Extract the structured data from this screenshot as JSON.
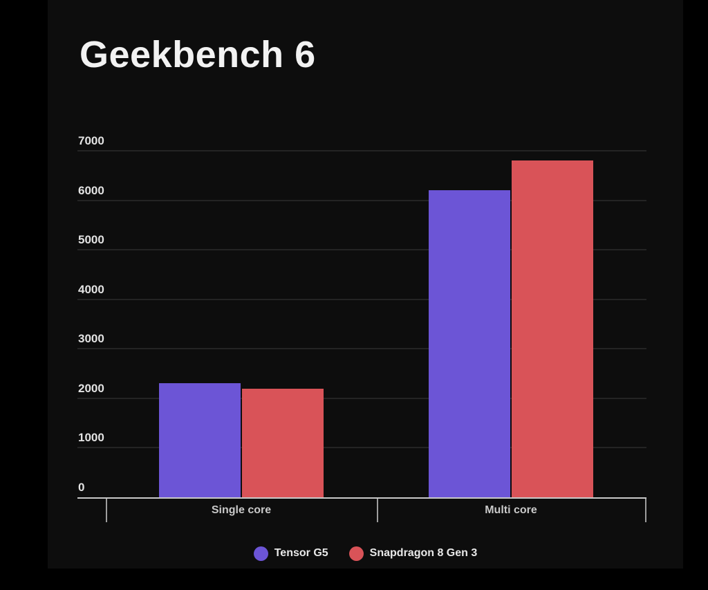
{
  "page": {
    "background": "#000000",
    "card_background": "#0d0d0d"
  },
  "chart_data": {
    "type": "bar",
    "title": "Geekbench 6",
    "categories": [
      "Single core",
      "Multi core"
    ],
    "series": [
      {
        "name": "Tensor G5",
        "color": "#6C55D6",
        "values": [
          2300,
          6200
        ]
      },
      {
        "name": "Snapdragon 8 Gen 3",
        "color": "#D95358",
        "values": [
          2200,
          6800
        ]
      }
    ],
    "xlabel": "",
    "ylabel": "",
    "ylim": [
      0,
      7000
    ],
    "yticks": [
      0,
      1000,
      2000,
      3000,
      4000,
      5000,
      6000,
      7000
    ],
    "grid": true,
    "legend_position": "bottom",
    "styles": {
      "title_color": "#f2f2f2",
      "y_label_color": "#e3e3e3",
      "category_label_color": "#c9c9c9",
      "legend_text_color": "#e9e9e9",
      "gridline_color": "#242424",
      "axis_line_color": "#c9c9c9",
      "tick_color": "#9e9e9e"
    }
  }
}
